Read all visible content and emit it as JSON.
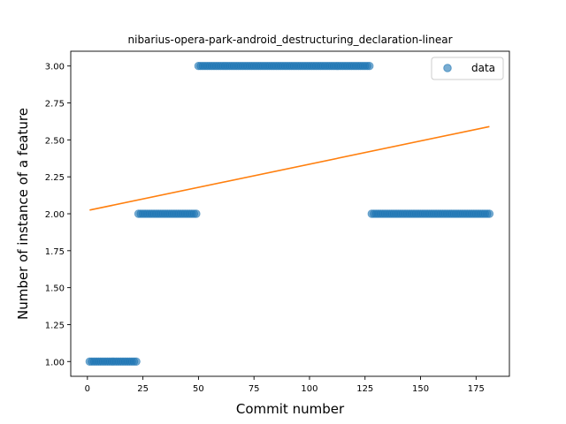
{
  "chart_data": {
    "type": "scatter",
    "title": "nibarius-opera-park-android_destructuring_declaration-linear",
    "xlabel": "Commit number",
    "ylabel": "Number of instance of a feature",
    "xlim": [
      -7.5,
      190
    ],
    "ylim": [
      0.9,
      3.1
    ],
    "xticks": [
      0,
      25,
      50,
      75,
      100,
      125,
      150,
      175
    ],
    "yticks": [
      1.0,
      1.25,
      1.5,
      1.75,
      2.0,
      2.25,
      2.5,
      2.75,
      3.0
    ],
    "xtick_labels": [
      "0",
      "25",
      "50",
      "75",
      "100",
      "125",
      "150",
      "175"
    ],
    "ytick_labels": [
      "1.00",
      "1.25",
      "1.50",
      "1.75",
      "2.00",
      "2.25",
      "2.50",
      "2.75",
      "3.00"
    ],
    "grid": false,
    "legend_position": "top-right",
    "series": [
      {
        "name": "data",
        "kind": "scatter",
        "color": "#1f77b4",
        "segments": [
          {
            "x_start": 1,
            "x_end": 22,
            "y": 1.0
          },
          {
            "x_start": 23,
            "x_end": 49,
            "y": 2.0
          },
          {
            "x_start": 50,
            "x_end": 127,
            "y": 3.0
          },
          {
            "x_start": 128,
            "x_end": 181,
            "y": 2.0
          }
        ]
      },
      {
        "kind": "line",
        "color": "#ff7f0e",
        "x": [
          1,
          181
        ],
        "y": [
          2.025,
          2.59
        ]
      }
    ]
  }
}
